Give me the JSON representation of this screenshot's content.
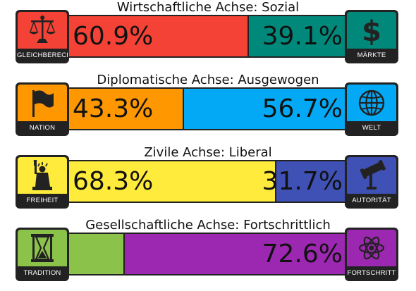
{
  "axes": [
    {
      "title": "Wirtschaftliche Achse: Sozial",
      "left_label": "GLEICHBERECHTIGUNG",
      "right_label": "MÄRKTE",
      "left_pct": "60.9%",
      "right_pct": "39.1%",
      "left_value": 60.9,
      "right_value": 39.1,
      "left_color": "#f44336",
      "right_color": "#00897b",
      "left_icon": "scales-icon",
      "right_icon": "dollar-icon"
    },
    {
      "title": "Diplomatische Achse: Ausgewogen",
      "left_label": "NATION",
      "right_label": "WELT",
      "left_pct": "43.3%",
      "right_pct": "56.7%",
      "left_value": 43.3,
      "right_value": 56.7,
      "left_color": "#ff9800",
      "right_color": "#03a9f4",
      "left_icon": "flag-icon",
      "right_icon": "globe-icon"
    },
    {
      "title": "Zivile Achse: Liberal",
      "left_label": "FREIHEIT",
      "right_label": "AUTORITÄT",
      "left_pct": "68.3%",
      "right_pct": "31.7%",
      "left_value": 68.3,
      "right_value": 31.7,
      "left_color": "#ffeb3b",
      "right_color": "#3f51b5",
      "left_icon": "liberty-icon",
      "right_icon": "gavel-icon"
    },
    {
      "title": "Gesellschaftliche Achse: Fortschrittlich",
      "left_label": "TRADITION",
      "right_label": "FORTSCHRITT",
      "left_pct": "",
      "right_pct": "72.6%",
      "left_value": 27.4,
      "right_value": 72.6,
      "left_color": "#8bc34a",
      "right_color": "#9c27b0",
      "left_icon": "hourglass-icon",
      "right_icon": "atom-icon"
    }
  ]
}
